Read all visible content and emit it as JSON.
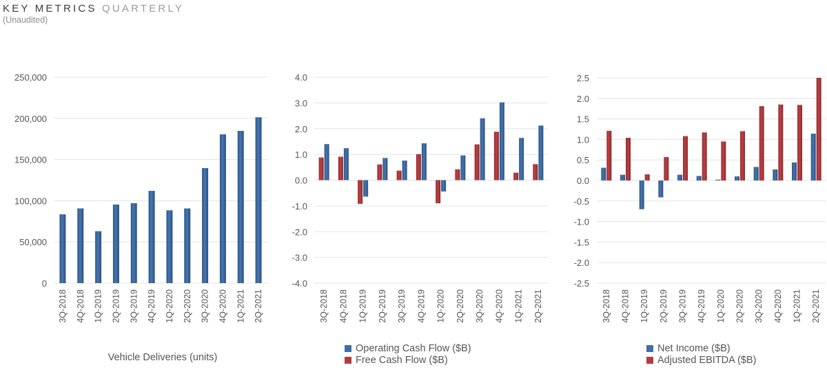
{
  "header": {
    "title_main": "KEY METRICS",
    "title_sub": "QUARTERLY",
    "subtitle": "(Unaudited)"
  },
  "colors": {
    "blue": "#3f6ea8",
    "red": "#b53a3e",
    "grid": "#e3e3e3",
    "text": "#555555"
  },
  "chart_data": [
    {
      "type": "bar",
      "title": "",
      "xlabel": "Vehicle Deliveries (units)",
      "ylabel": "",
      "categories": [
        "3Q-2018",
        "4Q-2018",
        "1Q-2019",
        "2Q-2019",
        "3Q-2019",
        "4Q-2019",
        "1Q-2020",
        "2Q-2020",
        "3Q-2020",
        "4Q-2020",
        "1Q-2021",
        "2Q-2021"
      ],
      "series": [
        {
          "color": "#3f6ea8",
          "values": [
            83500,
            90700,
            63000,
            95400,
            97000,
            112000,
            88400,
            90650,
            139600,
            180570,
            184800,
            201300
          ]
        }
      ],
      "ylim": [
        0,
        250000
      ],
      "yticks": [
        0,
        50000,
        100000,
        150000,
        200000,
        250000
      ],
      "ytick_labels": [
        "0",
        "50,000",
        "100,000",
        "150,000",
        "200,000",
        "250,000"
      ],
      "grid": true,
      "legend": []
    },
    {
      "type": "bar",
      "title": "",
      "xlabel": "",
      "ylabel": "",
      "categories": [
        "3Q-2018",
        "4Q-2018",
        "1Q-2019",
        "2Q-2019",
        "3Q-2019",
        "4Q-2019",
        "1Q-2020",
        "2Q-2020",
        "3Q-2020",
        "4Q-2020",
        "1Q-2021",
        "2Q-2021"
      ],
      "series": [
        {
          "name": "Operating Cash Flow ($B)",
          "color": "#3f6ea8",
          "values": [
            1.4,
            1.24,
            -0.64,
            0.86,
            0.76,
            1.43,
            -0.44,
            0.96,
            2.4,
            3.02,
            1.64,
            2.12
          ]
        },
        {
          "name": "Free Cash Flow ($B)",
          "color": "#b53a3e",
          "values": [
            0.88,
            0.91,
            -0.92,
            0.61,
            0.37,
            1.01,
            -0.9,
            0.42,
            1.39,
            1.88,
            0.29,
            0.62
          ]
        }
      ],
      "series_order": [
        1,
        0
      ],
      "ylim": [
        -4,
        4
      ],
      "yticks": [
        -4,
        -3,
        -2,
        -1,
        0,
        1,
        2,
        3,
        4
      ],
      "ytick_labels": [
        "-4.0",
        "-3.0",
        "-2.0",
        "-1.0",
        "0.0",
        "1.0",
        "2.0",
        "3.0",
        "4.0"
      ],
      "grid": true,
      "legend": [
        "Operating Cash Flow ($B)",
        "Free Cash Flow ($B)"
      ],
      "legend_position": "bottom"
    },
    {
      "type": "bar",
      "title": "",
      "xlabel": "",
      "ylabel": "",
      "categories": [
        "3Q-2018",
        "4Q-2018",
        "1Q-2019",
        "2Q-2019",
        "3Q-2019",
        "4Q-2019",
        "1Q-2020",
        "2Q-2020",
        "3Q-2020",
        "4Q-2020",
        "1Q-2021",
        "2Q-2021"
      ],
      "series": [
        {
          "name": "Net Income ($B)",
          "color": "#3f6ea8",
          "values": [
            0.31,
            0.14,
            -0.7,
            -0.41,
            0.14,
            0.11,
            0.02,
            0.1,
            0.33,
            0.27,
            0.44,
            1.14
          ]
        },
        {
          "name": "Adjusted EBITDA ($B)",
          "color": "#b53a3e",
          "values": [
            1.21,
            1.04,
            0.15,
            0.57,
            1.08,
            1.17,
            0.95,
            1.2,
            1.81,
            1.85,
            1.84,
            2.5
          ]
        }
      ],
      "series_order": [
        0,
        1
      ],
      "ylim": [
        -2.5,
        2.5
      ],
      "yticks": [
        -2.5,
        -2,
        -1.5,
        -1,
        -0.5,
        0,
        0.5,
        1,
        1.5,
        2,
        2.5
      ],
      "ytick_labels": [
        "-2.5",
        "-2.0",
        "-1.5",
        "-1.0",
        "-0.5",
        "0.0",
        "0.5",
        "1.0",
        "1.5",
        "2.0",
        "2.5"
      ],
      "grid": true,
      "legend": [
        "Net Income ($B)",
        "Adjusted EBITDA ($B)"
      ],
      "legend_position": "bottom"
    }
  ]
}
